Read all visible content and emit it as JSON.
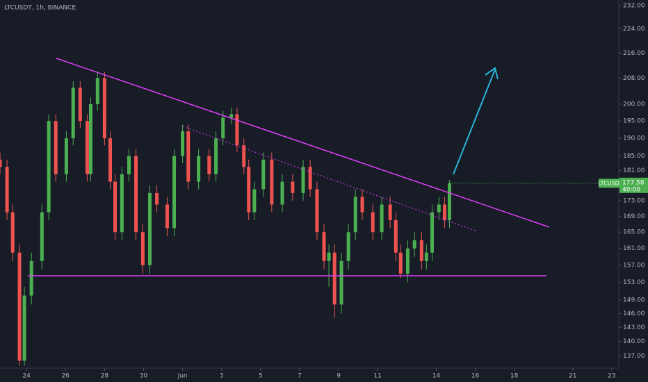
{
  "chart_data": {
    "type": "candlestick",
    "title": "LTCUSDT, 1h, BINANCE",
    "symbol_label": "LTCUSDT",
    "last_price": 177.58,
    "countdown": "40:00",
    "log_scale": true,
    "up_color": "#4caf50",
    "down_color": "#ef5350",
    "x": [
      22.64,
      23.0,
      23.29,
      23.64,
      23.89,
      24.25,
      24.79,
      25.14,
      25.5,
      26.04,
      26.39,
      26.75,
      27.11,
      27.29,
      27.64,
      28.0,
      28.29,
      28.54,
      28.89,
      29.25,
      29.61,
      29.96,
      30.32,
      30.68,
      31.21,
      31.57,
      32.0,
      32.29,
      32.82,
      33.36,
      33.71,
      34.07,
      34.5,
      34.79,
      35.14,
      35.39,
      35.68,
      36.14,
      36.57,
      37.11,
      37.64,
      38.18,
      38.54,
      38.89,
      39.25,
      39.5,
      39.79,
      40.14,
      40.5,
      40.86,
      41.21,
      41.75,
      42.21,
      42.64,
      42.93,
      43.18,
      43.54,
      43.89,
      44.25,
      44.5,
      44.79,
      45.14,
      45.43,
      45.68
    ],
    "open": [
      184,
      182,
      170,
      160,
      136,
      150,
      158,
      170,
      195,
      180,
      190,
      205,
      195,
      180,
      200,
      208,
      190,
      178,
      165,
      180,
      185,
      165,
      157,
      175,
      172,
      166,
      185,
      192,
      178,
      185,
      180,
      190,
      196,
      197,
      188,
      182,
      170,
      176,
      184,
      172,
      178,
      175,
      182,
      176,
      165,
      158,
      160,
      148,
      158,
      165,
      174,
      170,
      165,
      172,
      168,
      160,
      155,
      161,
      163,
      158,
      160,
      170,
      172,
      168
    ],
    "high": [
      186,
      184,
      172,
      162,
      152,
      160,
      172,
      197,
      197,
      192,
      207,
      207,
      197,
      202,
      210,
      210,
      192,
      180,
      182,
      187,
      187,
      167,
      177,
      177,
      174,
      187,
      194,
      194,
      187,
      187,
      192,
      198,
      199,
      199,
      190,
      184,
      178,
      186,
      186,
      180,
      180,
      184,
      184,
      178,
      167,
      162,
      162,
      160,
      167,
      176,
      176,
      172,
      174,
      174,
      170,
      162,
      163,
      165,
      165,
      162,
      172,
      174,
      174,
      178.5
    ],
    "low": [
      180,
      168,
      158,
      135,
      135,
      148,
      156,
      168,
      178,
      178,
      188,
      193,
      178,
      178,
      198,
      188,
      176,
      163,
      163,
      178,
      163,
      155,
      155,
      170,
      164,
      164,
      183,
      176,
      176,
      178,
      178,
      188,
      194,
      186,
      180,
      168,
      168,
      174,
      170,
      170,
      173,
      173,
      174,
      163,
      156,
      152,
      145,
      146,
      156,
      163,
      168,
      163,
      163,
      166,
      158,
      154,
      153,
      159,
      156,
      156,
      158,
      168,
      166,
      166
    ],
    "close": [
      182,
      170,
      160,
      136,
      150,
      158,
      170,
      195,
      180,
      190,
      205,
      195,
      180,
      200,
      208,
      190,
      178,
      165,
      180,
      185,
      165,
      157,
      175,
      172,
      166,
      185,
      192,
      178,
      185,
      180,
      190,
      196,
      197,
      188,
      182,
      170,
      176,
      184,
      172,
      178,
      175,
      182,
      176,
      165,
      158,
      160,
      148,
      158,
      165,
      174,
      170,
      165,
      172,
      168,
      160,
      155,
      161,
      163,
      158,
      160,
      170,
      172,
      168,
      177.58
    ],
    "xlim": [
      22.64,
      54.36
    ],
    "xticks": [
      24,
      26,
      28,
      30,
      {
        "value": 32,
        "label": "Jun"
      },
      {
        "value": 34,
        "label": "3"
      },
      {
        "value": 36,
        "label": "5"
      },
      {
        "value": 38,
        "label": "7"
      },
      {
        "value": 40,
        "label": "9"
      },
      {
        "value": 42,
        "label": "11"
      },
      {
        "value": 45,
        "label": "14"
      },
      {
        "value": 47,
        "label": "16"
      },
      {
        "value": 49,
        "label": "18"
      },
      {
        "value": 52,
        "label": "21"
      },
      {
        "value": 54,
        "label": "23"
      }
    ],
    "ylim": [
      134.5,
      233.9
    ],
    "yticks": [
      {
        "value": 232,
        "label": "232.00"
      },
      {
        "value": 224,
        "label": "224.00"
      },
      {
        "value": 216,
        "label": "216.00"
      },
      {
        "value": 208,
        "label": "208.00"
      },
      {
        "value": 200,
        "label": "200.00"
      },
      {
        "value": 195,
        "label": "195.00"
      },
      {
        "value": 190,
        "label": "190.00"
      },
      {
        "value": 185,
        "label": "185.00"
      },
      {
        "value": 181,
        "label": "181.00"
      },
      {
        "value": 173,
        "label": "173.00"
      },
      {
        "value": 169,
        "label": "169.00"
      },
      {
        "value": 165,
        "label": "165.00"
      },
      {
        "value": 161,
        "label": "161.00"
      },
      {
        "value": 157,
        "label": "157.00"
      },
      {
        "value": 153,
        "label": "153.00"
      },
      {
        "value": 149,
        "label": "149.00"
      },
      {
        "value": 146,
        "label": "146.00"
      },
      {
        "value": 143,
        "label": "143.00"
      },
      {
        "value": 140,
        "label": "140.00"
      },
      {
        "value": 137,
        "label": "137.00"
      }
    ]
  }
}
